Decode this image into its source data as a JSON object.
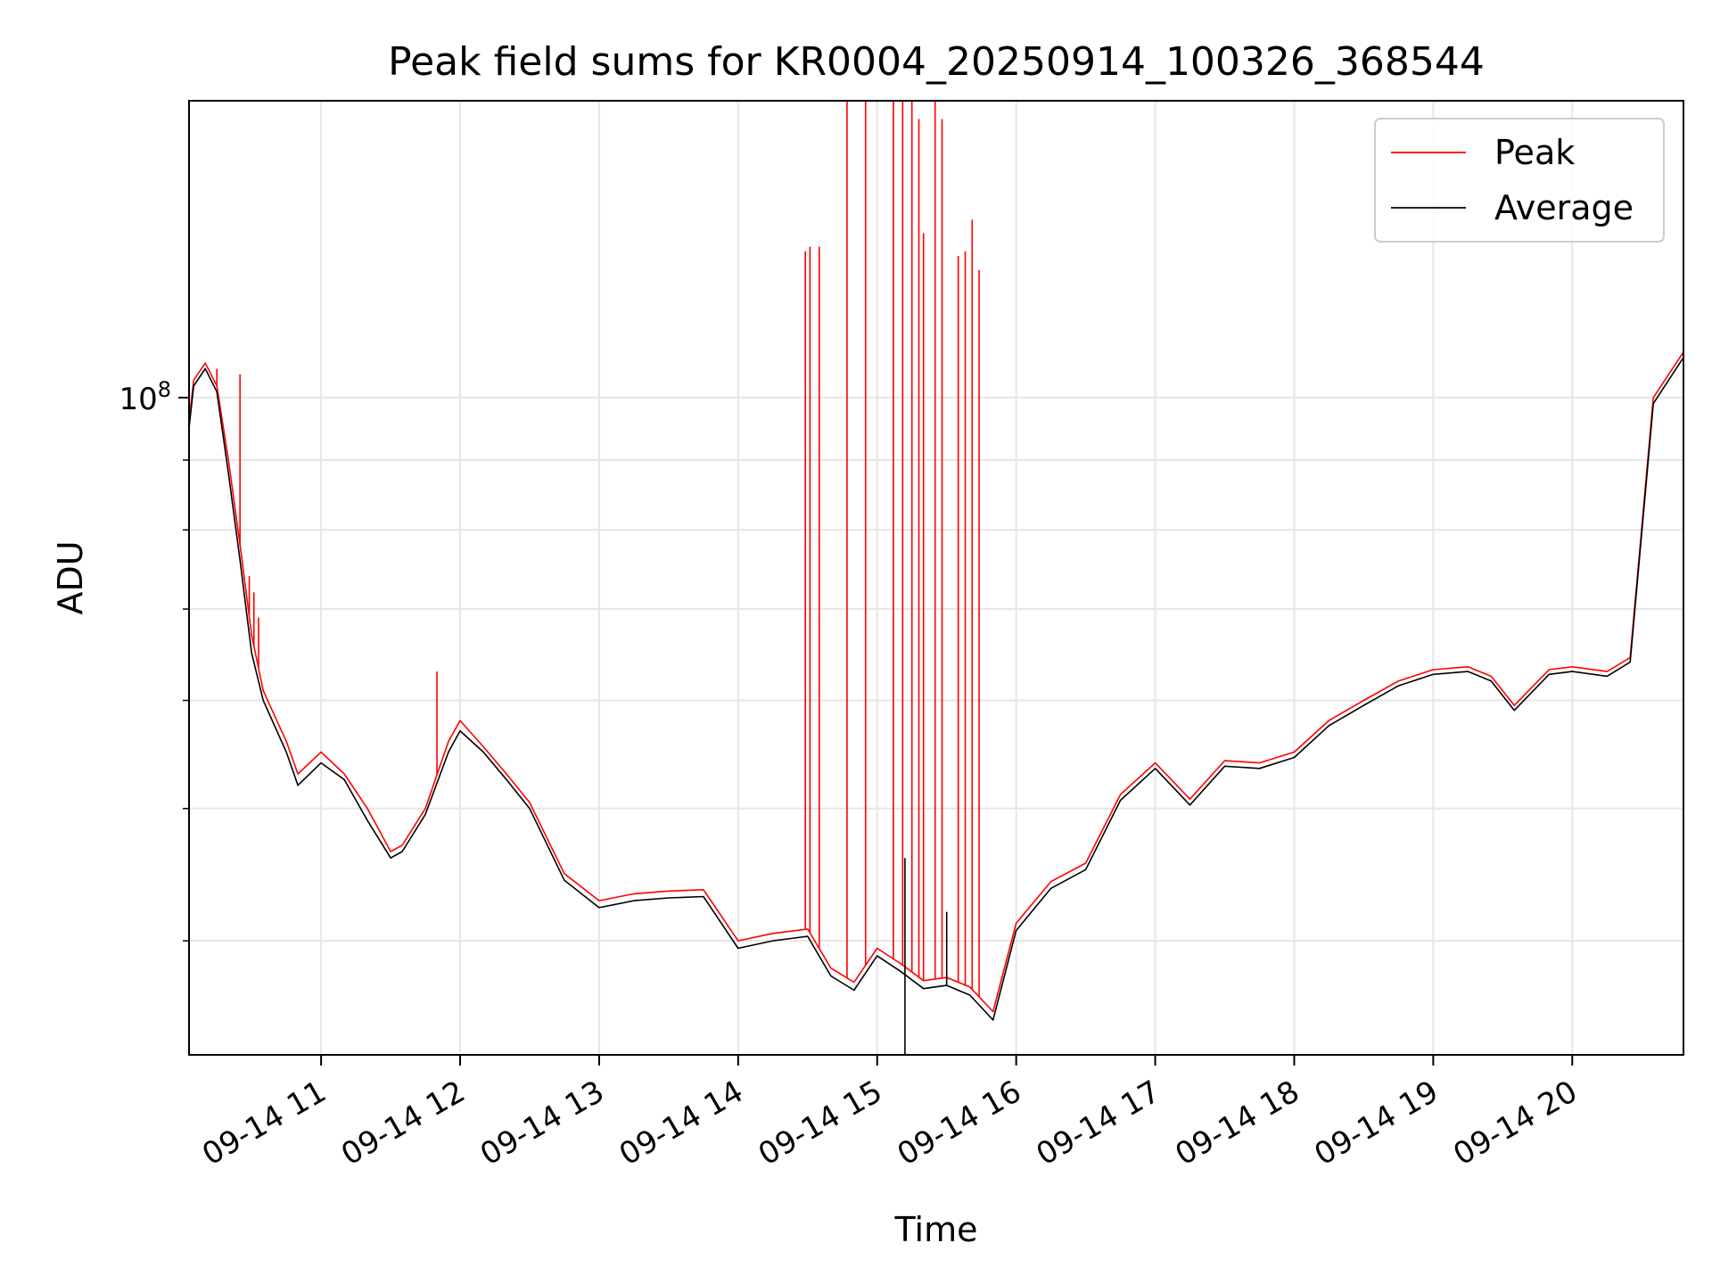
{
  "chart_data": {
    "type": "line",
    "title": "Peak field sums for KR0004_20250914_100326_368544",
    "xlabel": "Time",
    "ylabel": "ADU",
    "y_scale": "log",
    "ylim": [
      33000000,
      165000000
    ],
    "xlim": [
      "2025-09-14 10:03",
      "2025-09-14 20:48"
    ],
    "x_tick_labels": [
      "09-14 11",
      "09-14 12",
      "09-14 13",
      "09-14 14",
      "09-14 15",
      "09-14 16",
      "09-14 17",
      "09-14 18",
      "09-14 19",
      "09-14 20"
    ],
    "x_ticks": [
      "2025-09-14 11:00",
      "2025-09-14 12:00",
      "2025-09-14 13:00",
      "2025-09-14 14:00",
      "2025-09-14 15:00",
      "2025-09-14 16:00",
      "2025-09-14 17:00",
      "2025-09-14 18:00",
      "2025-09-14 19:00",
      "2025-09-14 20:00"
    ],
    "y_major_tick": {
      "value": 100000000,
      "label_base": "10",
      "label_exp": "8"
    },
    "y_minor_ticks": [
      40000000,
      50000000,
      60000000,
      70000000,
      80000000,
      90000000,
      200000000
    ],
    "grid": true,
    "legend_position": "top-right",
    "series": [
      {
        "name": "Peak",
        "color": "#ff0000",
        "x": [
          "2025-09-14 10:03",
          "2025-09-14 10:05",
          "2025-09-14 10:10",
          "2025-09-14 10:15",
          "2025-09-14 10:20",
          "2025-09-14 10:25",
          "2025-09-14 10:30",
          "2025-09-14 10:35",
          "2025-09-14 10:45",
          "2025-09-14 10:50",
          "2025-09-14 11:00",
          "2025-09-14 11:10",
          "2025-09-14 11:20",
          "2025-09-14 11:30",
          "2025-09-14 11:35",
          "2025-09-14 11:45",
          "2025-09-14 11:55",
          "2025-09-14 12:00",
          "2025-09-14 12:10",
          "2025-09-14 12:20",
          "2025-09-14 12:30",
          "2025-09-14 12:45",
          "2025-09-14 13:00",
          "2025-09-14 13:15",
          "2025-09-14 13:30",
          "2025-09-14 13:45",
          "2025-09-14 14:00",
          "2025-09-14 14:15",
          "2025-09-14 14:30",
          "2025-09-14 14:40",
          "2025-09-14 14:50",
          "2025-09-14 15:00",
          "2025-09-14 15:10",
          "2025-09-14 15:20",
          "2025-09-14 15:30",
          "2025-09-14 15:40",
          "2025-09-14 15:50",
          "2025-09-14 16:00",
          "2025-09-14 16:15",
          "2025-09-14 16:30",
          "2025-09-14 16:45",
          "2025-09-14 17:00",
          "2025-09-14 17:15",
          "2025-09-14 17:30",
          "2025-09-14 17:45",
          "2025-09-14 18:00",
          "2025-09-14 18:15",
          "2025-09-14 18:30",
          "2025-09-14 18:45",
          "2025-09-14 19:00",
          "2025-09-14 19:15",
          "2025-09-14 19:25",
          "2025-09-14 19:35",
          "2025-09-14 19:50",
          "2025-09-14 20:00",
          "2025-09-14 20:15",
          "2025-09-14 20:25",
          "2025-09-14 20:35",
          "2025-09-14 20:48"
        ],
        "values": [
          96000000,
          103000000,
          106000000,
          102000000,
          90000000,
          78000000,
          67000000,
          61000000,
          56000000,
          53000000,
          55000000,
          53000000,
          50000000,
          46500000,
          47000000,
          50000000,
          56000000,
          58000000,
          55500000,
          53000000,
          50500000,
          44800000,
          42800000,
          43300000,
          43500000,
          43600000,
          40000000,
          40500000,
          40800000,
          38200000,
          37300000,
          39500000,
          38500000,
          37400000,
          37600000,
          37000000,
          35500000,
          41200000,
          44200000,
          45600000,
          51200000,
          54000000,
          50800000,
          54200000,
          54000000,
          55000000,
          58000000,
          60000000,
          62000000,
          63200000,
          63500000,
          62500000,
          59500000,
          63200000,
          63500000,
          63000000,
          64500000,
          100000000,
          108000000
        ],
        "spikes": [
          {
            "x": "2025-09-14 10:15",
            "value": 105000000
          },
          {
            "x": "2025-09-14 10:25",
            "value": 104000000
          },
          {
            "x": "2025-09-14 10:29",
            "value": 74000000
          },
          {
            "x": "2025-09-14 10:31",
            "value": 72000000
          },
          {
            "x": "2025-09-14 10:33",
            "value": 69000000
          },
          {
            "x": "2025-09-14 11:50",
            "value": 63000000
          },
          {
            "x": "2025-09-14 14:29",
            "value": 128000000
          },
          {
            "x": "2025-09-14 14:31",
            "value": 129000000
          },
          {
            "x": "2025-09-14 14:35",
            "value": 129000000
          },
          {
            "x": "2025-09-14 14:47",
            "value": 165000000
          },
          {
            "x": "2025-09-14 14:55",
            "value": 165000000
          },
          {
            "x": "2025-09-14 15:07",
            "value": 165000000
          },
          {
            "x": "2025-09-14 15:11",
            "value": 165000000
          },
          {
            "x": "2025-09-14 15:15",
            "value": 165000000
          },
          {
            "x": "2025-09-14 15:18",
            "value": 160000000
          },
          {
            "x": "2025-09-14 15:20",
            "value": 132000000
          },
          {
            "x": "2025-09-14 15:25",
            "value": 165000000
          },
          {
            "x": "2025-09-14 15:28",
            "value": 160000000
          },
          {
            "x": "2025-09-14 15:35",
            "value": 127000000
          },
          {
            "x": "2025-09-14 15:38",
            "value": 128000000
          },
          {
            "x": "2025-09-14 15:41",
            "value": 135000000
          },
          {
            "x": "2025-09-14 15:44",
            "value": 124000000
          }
        ]
      },
      {
        "name": "Average",
        "color": "#000000",
        "x": [
          "2025-09-14 10:03",
          "2025-09-14 10:05",
          "2025-09-14 10:10",
          "2025-09-14 10:15",
          "2025-09-14 10:20",
          "2025-09-14 10:25",
          "2025-09-14 10:30",
          "2025-09-14 10:35",
          "2025-09-14 10:45",
          "2025-09-14 10:50",
          "2025-09-14 11:00",
          "2025-09-14 11:10",
          "2025-09-14 11:20",
          "2025-09-14 11:30",
          "2025-09-14 11:35",
          "2025-09-14 11:45",
          "2025-09-14 11:55",
          "2025-09-14 12:00",
          "2025-09-14 12:10",
          "2025-09-14 12:20",
          "2025-09-14 12:30",
          "2025-09-14 12:45",
          "2025-09-14 13:00",
          "2025-09-14 13:15",
          "2025-09-14 13:30",
          "2025-09-14 13:45",
          "2025-09-14 14:00",
          "2025-09-14 14:15",
          "2025-09-14 14:30",
          "2025-09-14 14:40",
          "2025-09-14 14:50",
          "2025-09-14 15:00",
          "2025-09-14 15:10",
          "2025-09-14 15:20",
          "2025-09-14 15:30",
          "2025-09-14 15:40",
          "2025-09-14 15:50",
          "2025-09-14 16:00",
          "2025-09-14 16:15",
          "2025-09-14 16:30",
          "2025-09-14 16:45",
          "2025-09-14 17:00",
          "2025-09-14 17:15",
          "2025-09-14 17:30",
          "2025-09-14 17:45",
          "2025-09-14 18:00",
          "2025-09-14 18:15",
          "2025-09-14 18:30",
          "2025-09-14 18:45",
          "2025-09-14 19:00",
          "2025-09-14 19:15",
          "2025-09-14 19:25",
          "2025-09-14 19:35",
          "2025-09-14 19:50",
          "2025-09-14 20:00",
          "2025-09-14 20:15",
          "2025-09-14 20:25",
          "2025-09-14 20:35",
          "2025-09-14 20:48"
        ],
        "values": [
          95000000,
          102000000,
          105000000,
          101000000,
          88000000,
          76000000,
          65000000,
          60000000,
          55000000,
          52000000,
          54000000,
          52500000,
          49000000,
          46000000,
          46500000,
          49500000,
          55000000,
          57000000,
          55000000,
          52500000,
          50000000,
          44300000,
          42300000,
          42800000,
          43000000,
          43100000,
          39500000,
          40000000,
          40300000,
          37700000,
          36800000,
          39000000,
          38000000,
          36900000,
          37100000,
          36500000,
          35000000,
          40700000,
          43700000,
          45100000,
          50700000,
          53500000,
          50300000,
          53700000,
          53500000,
          54500000,
          57500000,
          59500000,
          61500000,
          62700000,
          63000000,
          62000000,
          59000000,
          62700000,
          63000000,
          62500000,
          64000000,
          99000000,
          107000000
        ],
        "spikes": [
          {
            "x": "2025-09-14 15:12",
            "value": 46000000
          },
          {
            "x": "2025-09-14 15:12",
            "value": 33000000
          },
          {
            "x": "2025-09-14 15:30",
            "value": 42000000
          }
        ]
      }
    ]
  }
}
